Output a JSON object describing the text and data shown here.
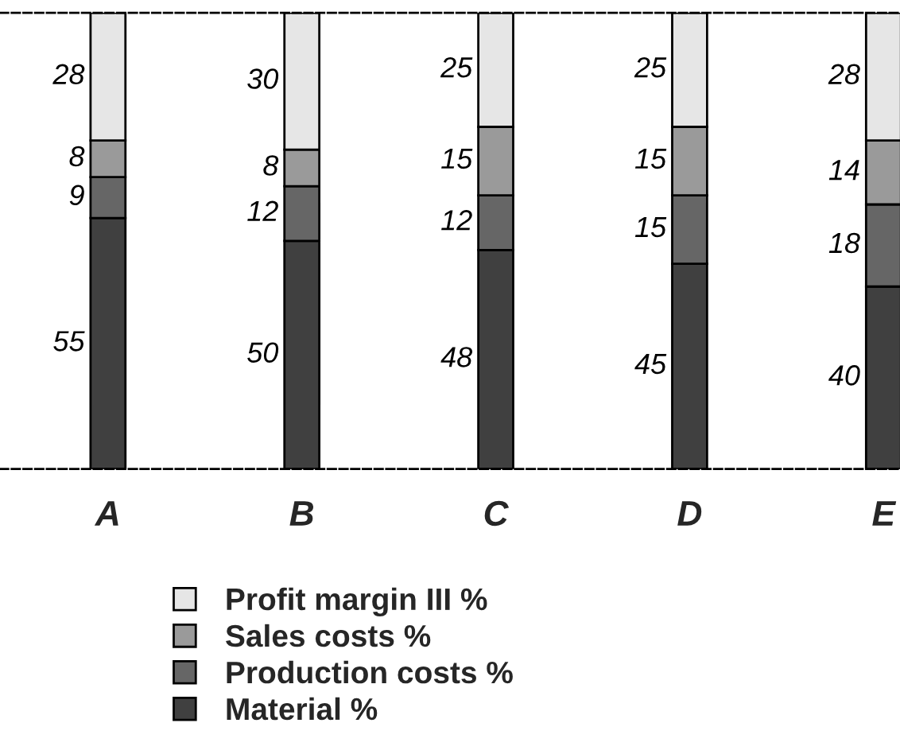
{
  "chart_data": {
    "type": "bar",
    "stacked": true,
    "categories": [
      "A",
      "B",
      "C",
      "D",
      "E"
    ],
    "series": [
      {
        "name": "Material %",
        "color": "#404040",
        "values": [
          55,
          50,
          48,
          45,
          40
        ]
      },
      {
        "name": "Production costs %",
        "color": "#666666",
        "values": [
          9,
          12,
          12,
          15,
          18
        ]
      },
      {
        "name": "Sales costs %",
        "color": "#9a9a9a",
        "values": [
          8,
          8,
          15,
          15,
          14
        ]
      },
      {
        "name": "Profit margin III %",
        "color": "#e6e6e6",
        "values": [
          28,
          30,
          25,
          25,
          28
        ]
      }
    ],
    "data_labels": true,
    "legend": "bottom"
  }
}
